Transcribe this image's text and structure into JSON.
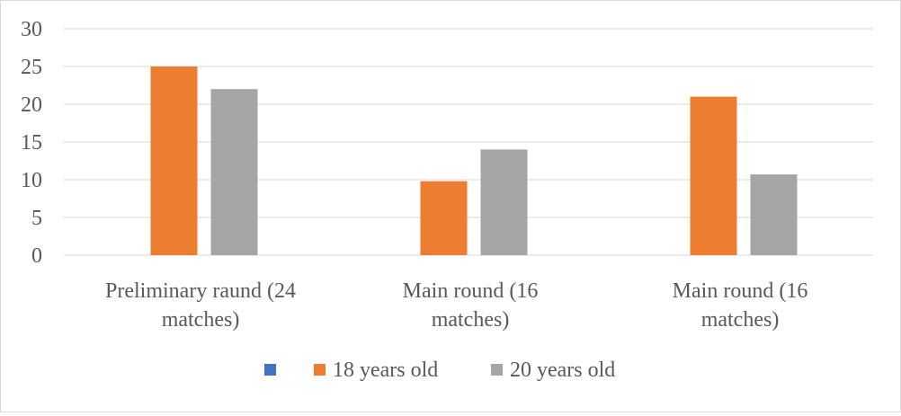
{
  "chart_data": {
    "type": "bar",
    "categories": [
      [
        "Preliminary raund (24",
        "matches)"
      ],
      [
        "Main round (16",
        "matches)"
      ],
      [
        "Main round (16",
        "matches)"
      ]
    ],
    "series": [
      {
        "name": "",
        "color": "#4472c4",
        "values": [
          0,
          0,
          0
        ]
      },
      {
        "name": "18 years old",
        "color": "#ed7d31",
        "values": [
          25,
          9.8,
          21
        ]
      },
      {
        "name": "20 years old",
        "color": "#a5a5a5",
        "values": [
          22,
          14,
          10.7
        ]
      }
    ],
    "ylim": [
      0,
      30
    ],
    "yticks": [
      "0",
      "5",
      "10",
      "15",
      "20",
      "25",
      "30"
    ],
    "grid": true,
    "legend": "bottom",
    "gridColor": "#d9d9d9"
  }
}
